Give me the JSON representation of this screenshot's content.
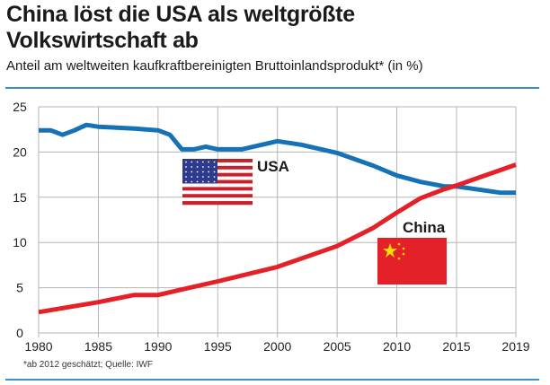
{
  "header": {
    "title_line1": "China löst die USA als weltgrößte",
    "title_line2": "Volkswirtschaft ab",
    "subtitle": "Anteil am weltweiten kaufkraftbereinigten Bruttoinlandsprodukt* (in %)"
  },
  "footnote": "*ab 2012 geschätzt;  Quelle: IWF",
  "colors": {
    "usa": "#1572b6",
    "china": "#e42128",
    "rule": "#3a8fd0",
    "grid": "#b5b5b5"
  },
  "chart_data": {
    "type": "line",
    "title": "China löst die USA als weltgrößte Volkswirtschaft ab",
    "ylabel": "",
    "xlabel": "",
    "ylim": [
      0,
      25
    ],
    "xlim": [
      1980,
      2019
    ],
    "x_ticks": [
      "1980",
      "1985",
      "1990",
      "1995",
      "2000",
      "2005",
      "2010",
      "2015",
      "2019"
    ],
    "y_ticks": [
      "0",
      "5",
      "10",
      "15",
      "20",
      "25"
    ],
    "grid": true,
    "series": [
      {
        "name": "USA",
        "color": "#1572b6",
        "icon": "usa-flag",
        "x": [
          1980,
          1981,
          1982,
          1983,
          1984,
          1985,
          1988,
          1990,
          1991,
          1992,
          1993,
          1994,
          1995,
          1997,
          2000,
          2002,
          2005,
          2008,
          2010,
          2012,
          2014,
          2015,
          2018,
          2019
        ],
        "values": [
          22.4,
          22.4,
          21.9,
          22.4,
          23.0,
          22.8,
          22.6,
          22.4,
          21.9,
          20.3,
          20.3,
          20.6,
          20.3,
          20.3,
          21.2,
          20.8,
          19.9,
          18.5,
          17.4,
          16.7,
          16.2,
          16.2,
          15.5,
          15.5
        ]
      },
      {
        "name": "China",
        "color": "#e42128",
        "icon": "china-flag",
        "x": [
          1980,
          1985,
          1988,
          1990,
          1992,
          1995,
          2000,
          2005,
          2008,
          2010,
          2012,
          2014,
          2015,
          2019
        ],
        "values": [
          2.3,
          3.4,
          4.2,
          4.2,
          4.8,
          5.7,
          7.3,
          9.6,
          11.6,
          13.3,
          14.9,
          15.9,
          16.3,
          18.6
        ]
      }
    ]
  }
}
